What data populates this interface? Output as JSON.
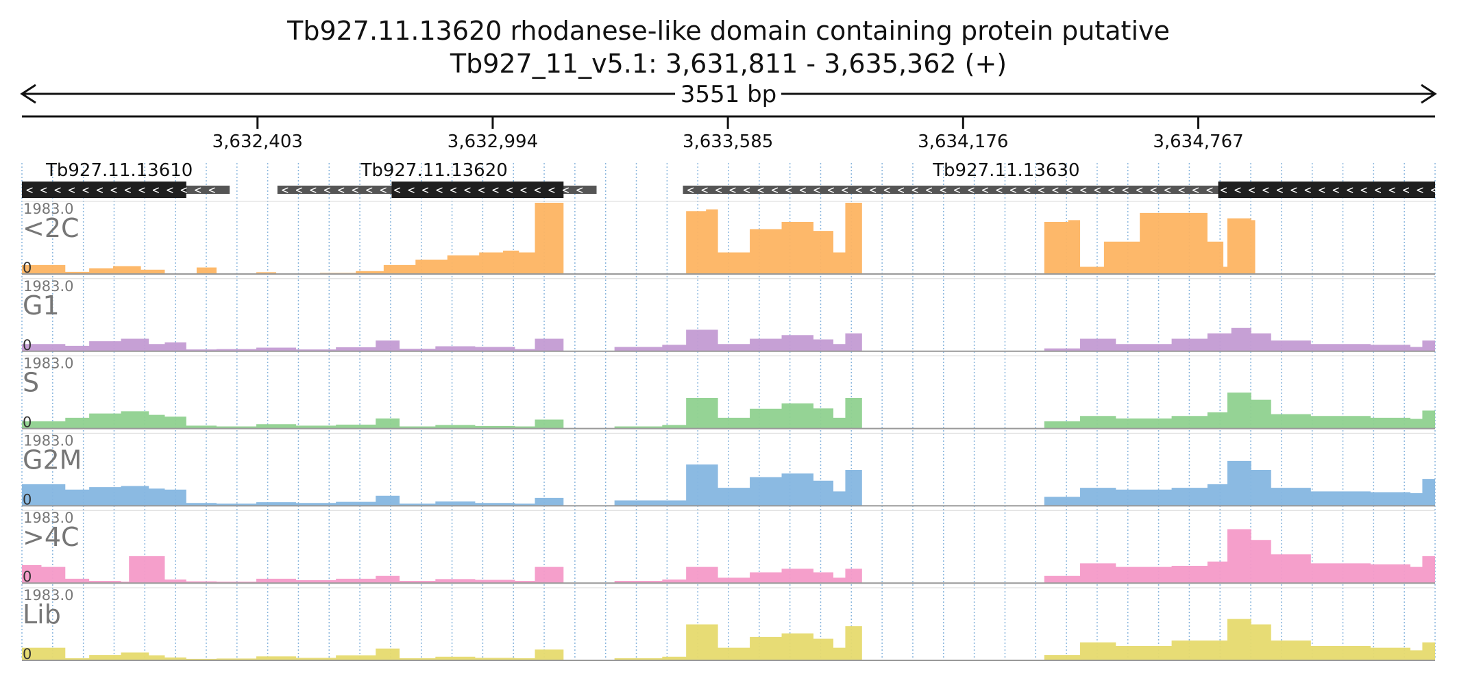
{
  "header": {
    "title": "Tb927.11.13620  rhodanese-like domain containing protein  putative",
    "subtitle": "Tb927_11_v5.1: 3,631,811 - 3,635,362 (+)",
    "span_label": "3551 bp"
  },
  "colors": {
    "axis": "#111111",
    "gridline": "#8ab6dd",
    "gene_exon": "#1f1f1f",
    "gene_utr": "#555555",
    "baseline": "#999999"
  },
  "chart_data": {
    "type": "area",
    "chromosome": "Tb927_11_v5.1",
    "region": {
      "start": 3631811,
      "end": 3635362,
      "strand": "+"
    },
    "ticks": [
      {
        "pos": 3632403,
        "label": "3,632,403"
      },
      {
        "pos": 3632994,
        "label": "3,632,994"
      },
      {
        "pos": 3633585,
        "label": "3,633,585"
      },
      {
        "pos": 3634176,
        "label": "3,634,176"
      },
      {
        "pos": 3634767,
        "label": "3,634,767"
      }
    ],
    "genes": [
      {
        "name": "Tb927.11.13610",
        "strand": "-",
        "utr": [
          [
            3631811,
            3632333
          ]
        ],
        "cds": [
          [
            3631811,
            3632224
          ]
        ]
      },
      {
        "name": "Tb927.11.13620",
        "strand": "-",
        "utr": [
          [
            3632453,
            3633255
          ]
        ],
        "cds": [
          [
            3632740,
            3633172
          ]
        ]
      },
      {
        "name": "Tb927.11.13630",
        "strand": "-",
        "utr": [
          [
            3633472,
            3635362
          ]
        ],
        "cds": [
          [
            3634817,
            3635362
          ]
        ]
      }
    ],
    "ylim": [
      0,
      1983.0
    ],
    "series": [
      {
        "name": "<2C",
        "color": "#fdb462",
        "ymax_label": "1983.0",
        "ymin_label": "0",
        "points": [
          [
            3631811,
            250
          ],
          [
            3631860,
            250
          ],
          [
            3631920,
            60
          ],
          [
            3631980,
            160
          ],
          [
            3632040,
            220
          ],
          [
            3632110,
            120
          ],
          [
            3632170,
            20
          ],
          [
            3632250,
            180
          ],
          [
            3632300,
            10
          ],
          [
            3632330,
            0
          ],
          [
            3632400,
            50
          ],
          [
            3632450,
            0
          ],
          [
            3632560,
            30
          ],
          [
            3632650,
            80
          ],
          [
            3632720,
            250
          ],
          [
            3632800,
            400
          ],
          [
            3632880,
            520
          ],
          [
            3632960,
            600
          ],
          [
            3633020,
            650
          ],
          [
            3633060,
            600
          ],
          [
            3633100,
            1983
          ],
          [
            3633170,
            1983
          ],
          [
            3633172,
            0
          ],
          [
            3633480,
            1750
          ],
          [
            3633530,
            1800
          ],
          [
            3633560,
            600
          ],
          [
            3633640,
            1250
          ],
          [
            3633720,
            1450
          ],
          [
            3633800,
            1200
          ],
          [
            3633850,
            600
          ],
          [
            3633880,
            1983
          ],
          [
            3633920,
            1983
          ],
          [
            3633922,
            0
          ],
          [
            3634380,
            1450
          ],
          [
            3634440,
            1500
          ],
          [
            3634470,
            200
          ],
          [
            3634530,
            900
          ],
          [
            3634620,
            1700
          ],
          [
            3634700,
            1700
          ],
          [
            3634790,
            900
          ],
          [
            3634830,
            200
          ],
          [
            3634840,
            1550
          ],
          [
            3634900,
            1500
          ],
          [
            3634910,
            0
          ],
          [
            3635362,
            0
          ]
        ]
      },
      {
        "name": "G1",
        "color": "#c39bd3",
        "ymax_label": "1983.0",
        "ymin_label": "0",
        "points": [
          [
            3631811,
            200
          ],
          [
            3631860,
            200
          ],
          [
            3631920,
            150
          ],
          [
            3631980,
            280
          ],
          [
            3632060,
            350
          ],
          [
            3632130,
            200
          ],
          [
            3632170,
            250
          ],
          [
            3632224,
            50
          ],
          [
            3632300,
            60
          ],
          [
            3632400,
            100
          ],
          [
            3632500,
            50
          ],
          [
            3632600,
            110
          ],
          [
            3632700,
            300
          ],
          [
            3632760,
            70
          ],
          [
            3632850,
            140
          ],
          [
            3632950,
            120
          ],
          [
            3633050,
            60
          ],
          [
            3633100,
            350
          ],
          [
            3633170,
            350
          ],
          [
            3633172,
            0
          ],
          [
            3633300,
            120
          ],
          [
            3633420,
            180
          ],
          [
            3633480,
            600
          ],
          [
            3633530,
            600
          ],
          [
            3633560,
            200
          ],
          [
            3633640,
            350
          ],
          [
            3633720,
            450
          ],
          [
            3633800,
            330
          ],
          [
            3633850,
            200
          ],
          [
            3633880,
            500
          ],
          [
            3633920,
            500
          ],
          [
            3633922,
            0
          ],
          [
            3634380,
            80
          ],
          [
            3634440,
            80
          ],
          [
            3634470,
            350
          ],
          [
            3634560,
            200
          ],
          [
            3634700,
            350
          ],
          [
            3634790,
            500
          ],
          [
            3634850,
            650
          ],
          [
            3634900,
            500
          ],
          [
            3634950,
            300
          ],
          [
            3635050,
            200
          ],
          [
            3635200,
            180
          ],
          [
            3635300,
            120
          ],
          [
            3635330,
            300
          ],
          [
            3635362,
            300
          ]
        ]
      },
      {
        "name": "S",
        "color": "#8fd18f",
        "ymax_label": "1983.0",
        "ymin_label": "0",
        "points": [
          [
            3631811,
            200
          ],
          [
            3631860,
            200
          ],
          [
            3631920,
            300
          ],
          [
            3631980,
            420
          ],
          [
            3632060,
            480
          ],
          [
            3632130,
            380
          ],
          [
            3632170,
            330
          ],
          [
            3632224,
            80
          ],
          [
            3632300,
            60
          ],
          [
            3632400,
            120
          ],
          [
            3632500,
            80
          ],
          [
            3632600,
            110
          ],
          [
            3632700,
            280
          ],
          [
            3632760,
            60
          ],
          [
            3632850,
            100
          ],
          [
            3632950,
            70
          ],
          [
            3633050,
            60
          ],
          [
            3633100,
            250
          ],
          [
            3633170,
            250
          ],
          [
            3633172,
            0
          ],
          [
            3633300,
            60
          ],
          [
            3633420,
            100
          ],
          [
            3633480,
            850
          ],
          [
            3633530,
            850
          ],
          [
            3633560,
            300
          ],
          [
            3633640,
            550
          ],
          [
            3633720,
            700
          ],
          [
            3633800,
            560
          ],
          [
            3633850,
            300
          ],
          [
            3633880,
            850
          ],
          [
            3633920,
            850
          ],
          [
            3633922,
            0
          ],
          [
            3634380,
            200
          ],
          [
            3634440,
            200
          ],
          [
            3634470,
            350
          ],
          [
            3634560,
            280
          ],
          [
            3634700,
            350
          ],
          [
            3634790,
            450
          ],
          [
            3634840,
            1000
          ],
          [
            3634900,
            800
          ],
          [
            3634950,
            400
          ],
          [
            3635050,
            350
          ],
          [
            3635200,
            300
          ],
          [
            3635300,
            270
          ],
          [
            3635330,
            500
          ],
          [
            3635362,
            500
          ]
        ]
      },
      {
        "name": "G2M",
        "color": "#85b6e0",
        "ymax_label": "1983.0",
        "ymin_label": "0",
        "points": [
          [
            3631811,
            600
          ],
          [
            3631860,
            600
          ],
          [
            3631920,
            450
          ],
          [
            3631980,
            520
          ],
          [
            3632060,
            550
          ],
          [
            3632130,
            480
          ],
          [
            3632170,
            450
          ],
          [
            3632224,
            80
          ],
          [
            3632300,
            60
          ],
          [
            3632400,
            100
          ],
          [
            3632500,
            80
          ],
          [
            3632600,
            110
          ],
          [
            3632700,
            280
          ],
          [
            3632760,
            60
          ],
          [
            3632850,
            120
          ],
          [
            3632950,
            80
          ],
          [
            3633050,
            60
          ],
          [
            3633100,
            220
          ],
          [
            3633170,
            220
          ],
          [
            3633172,
            0
          ],
          [
            3633300,
            150
          ],
          [
            3633420,
            150
          ],
          [
            3633480,
            1150
          ],
          [
            3633530,
            1150
          ],
          [
            3633560,
            500
          ],
          [
            3633640,
            800
          ],
          [
            3633720,
            900
          ],
          [
            3633800,
            700
          ],
          [
            3633850,
            400
          ],
          [
            3633880,
            1000
          ],
          [
            3633920,
            1000
          ],
          [
            3633922,
            0
          ],
          [
            3634380,
            250
          ],
          [
            3634440,
            250
          ],
          [
            3634470,
            500
          ],
          [
            3634560,
            450
          ],
          [
            3634700,
            500
          ],
          [
            3634790,
            600
          ],
          [
            3634840,
            1250
          ],
          [
            3634900,
            1000
          ],
          [
            3634950,
            500
          ],
          [
            3635050,
            400
          ],
          [
            3635200,
            380
          ],
          [
            3635300,
            350
          ],
          [
            3635330,
            750
          ],
          [
            3635362,
            750
          ]
        ]
      },
      {
        "name": ">4C",
        "color": "#f49ac8",
        "ymax_label": "1983.0",
        "ymin_label": "0",
        "points": [
          [
            3631811,
            500
          ],
          [
            3631860,
            450
          ],
          [
            3631920,
            120
          ],
          [
            3631980,
            60
          ],
          [
            3632060,
            40
          ],
          [
            3632080,
            750
          ],
          [
            3632130,
            750
          ],
          [
            3632170,
            100
          ],
          [
            3632224,
            50
          ],
          [
            3632300,
            40
          ],
          [
            3632400,
            120
          ],
          [
            3632500,
            80
          ],
          [
            3632600,
            120
          ],
          [
            3632700,
            200
          ],
          [
            3632760,
            60
          ],
          [
            3632850,
            110
          ],
          [
            3632950,
            90
          ],
          [
            3633050,
            60
          ],
          [
            3633100,
            450
          ],
          [
            3633170,
            450
          ],
          [
            3633172,
            0
          ],
          [
            3633300,
            60
          ],
          [
            3633420,
            100
          ],
          [
            3633480,
            450
          ],
          [
            3633530,
            450
          ],
          [
            3633560,
            150
          ],
          [
            3633640,
            300
          ],
          [
            3633720,
            400
          ],
          [
            3633800,
            300
          ],
          [
            3633850,
            150
          ],
          [
            3633880,
            400
          ],
          [
            3633920,
            400
          ],
          [
            3633922,
            0
          ],
          [
            3634380,
            200
          ],
          [
            3634440,
            200
          ],
          [
            3634470,
            550
          ],
          [
            3634560,
            450
          ],
          [
            3634700,
            480
          ],
          [
            3634790,
            600
          ],
          [
            3634840,
            1500
          ],
          [
            3634900,
            1200
          ],
          [
            3634950,
            800
          ],
          [
            3635050,
            550
          ],
          [
            3635200,
            520
          ],
          [
            3635300,
            450
          ],
          [
            3635330,
            750
          ],
          [
            3635362,
            750
          ]
        ]
      },
      {
        "name": "Lib",
        "color": "#e6da6e",
        "ymax_label": "1983.0",
        "ymin_label": "0",
        "points": [
          [
            3631811,
            350
          ],
          [
            3631860,
            350
          ],
          [
            3631920,
            60
          ],
          [
            3631980,
            150
          ],
          [
            3632060,
            220
          ],
          [
            3632130,
            140
          ],
          [
            3632170,
            80
          ],
          [
            3632224,
            40
          ],
          [
            3632300,
            50
          ],
          [
            3632400,
            110
          ],
          [
            3632500,
            70
          ],
          [
            3632600,
            140
          ],
          [
            3632700,
            330
          ],
          [
            3632760,
            60
          ],
          [
            3632850,
            100
          ],
          [
            3632950,
            70
          ],
          [
            3633050,
            60
          ],
          [
            3633100,
            300
          ],
          [
            3633170,
            300
          ],
          [
            3633172,
            0
          ],
          [
            3633300,
            60
          ],
          [
            3633420,
            100
          ],
          [
            3633480,
            1000
          ],
          [
            3633530,
            1000
          ],
          [
            3633560,
            350
          ],
          [
            3633640,
            650
          ],
          [
            3633720,
            750
          ],
          [
            3633800,
            600
          ],
          [
            3633850,
            350
          ],
          [
            3633880,
            950
          ],
          [
            3633920,
            950
          ],
          [
            3633922,
            0
          ],
          [
            3634380,
            150
          ],
          [
            3634440,
            150
          ],
          [
            3634470,
            500
          ],
          [
            3634560,
            400
          ],
          [
            3634700,
            550
          ],
          [
            3634790,
            550
          ],
          [
            3634840,
            1150
          ],
          [
            3634900,
            1000
          ],
          [
            3634950,
            550
          ],
          [
            3635050,
            400
          ],
          [
            3635200,
            350
          ],
          [
            3635300,
            280
          ],
          [
            3635330,
            500
          ],
          [
            3635362,
            500
          ]
        ]
      }
    ]
  }
}
